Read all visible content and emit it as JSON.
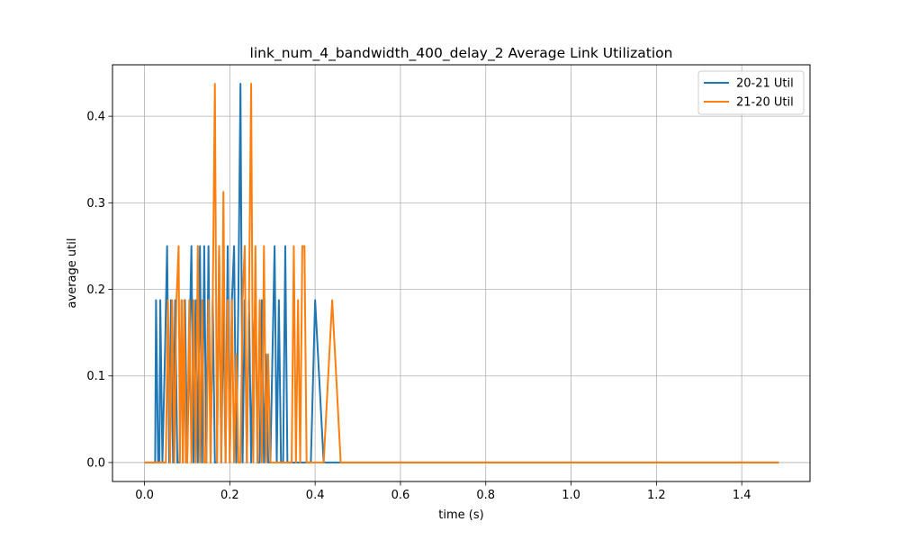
{
  "chart_data": {
    "type": "line",
    "title": "link_num_4_bandwidth_400_delay_2 Average Link Utilization",
    "xlabel": "time (s)",
    "ylabel": "average util",
    "xlim": [
      -0.075,
      1.56
    ],
    "ylim": [
      -0.0219,
      0.4594
    ],
    "xticks": [
      0.0,
      0.2,
      0.4,
      0.6,
      0.8,
      1.0,
      1.2,
      1.4
    ],
    "xtick_labels": [
      "0.0",
      "0.2",
      "0.4",
      "0.6",
      "0.8",
      "1.0",
      "1.2",
      "1.4"
    ],
    "yticks": [
      0.0,
      0.1,
      0.2,
      0.3,
      0.4
    ],
    "ytick_labels": [
      "0.0",
      "0.1",
      "0.2",
      "0.3",
      "0.4"
    ],
    "grid": true,
    "legend_position": "top-right",
    "series": [
      {
        "name": "20-21 Util",
        "color": "#1f77b4",
        "x": [
          0.0,
          0.025,
          0.027,
          0.032,
          0.035,
          0.037,
          0.042,
          0.048,
          0.053,
          0.058,
          0.062,
          0.067,
          0.072,
          0.077,
          0.082,
          0.087,
          0.09,
          0.095,
          0.1,
          0.105,
          0.11,
          0.115,
          0.12,
          0.125,
          0.13,
          0.135,
          0.14,
          0.145,
          0.15,
          0.155,
          0.16,
          0.165,
          0.17,
          0.175,
          0.18,
          0.185,
          0.19,
          0.195,
          0.2,
          0.205,
          0.21,
          0.215,
          0.22,
          0.225,
          0.23,
          0.235,
          0.24,
          0.245,
          0.25,
          0.255,
          0.26,
          0.265,
          0.27,
          0.275,
          0.28,
          0.285,
          0.29,
          0.295,
          0.3,
          0.305,
          0.31,
          0.315,
          0.32,
          0.325,
          0.33,
          0.335,
          0.34,
          0.345,
          0.35,
          0.36,
          0.37,
          0.38,
          0.39,
          0.4,
          0.42,
          0.44,
          0.46,
          0.5,
          0.8,
          1.2,
          1.487
        ],
        "y": [
          0.0,
          0.0,
          0.1875,
          0.0,
          0.0,
          0.1875,
          0.0,
          0.125,
          0.25,
          0.0,
          0.1875,
          0.0,
          0.1875,
          0.0,
          0.0,
          0.1875,
          0.0,
          0.1875,
          0.0,
          0.125,
          0.25,
          0.0,
          0.1875,
          0.0,
          0.25,
          0.0,
          0.25,
          0.0,
          0.25,
          0.0,
          0.1875,
          0.0,
          0.0,
          0.25,
          0.0,
          0.1875,
          0.0,
          0.25,
          0.0,
          0.1875,
          0.25,
          0.0,
          0.1875,
          0.4375,
          0.0,
          0.1875,
          0.0,
          0.1875,
          0.0,
          0.125,
          0.1875,
          0.0,
          0.0,
          0.1875,
          0.0,
          0.125,
          0.0,
          0.0,
          0.125,
          0.25,
          0.0,
          0.1875,
          0.0,
          0.0,
          0.25,
          0.0,
          0.0,
          0.0,
          0.0,
          0.0,
          0.0,
          0.0,
          0.0,
          0.1875,
          0.0,
          0.0,
          0.0,
          0.0,
          0.0,
          0.0,
          0.0
        ]
      },
      {
        "name": "21-20 Util",
        "color": "#ff7f0e",
        "x": [
          0.0,
          0.05,
          0.055,
          0.06,
          0.065,
          0.07,
          0.075,
          0.08,
          0.083,
          0.087,
          0.09,
          0.093,
          0.097,
          0.1,
          0.105,
          0.11,
          0.115,
          0.12,
          0.125,
          0.13,
          0.135,
          0.14,
          0.145,
          0.15,
          0.155,
          0.16,
          0.165,
          0.17,
          0.175,
          0.18,
          0.185,
          0.19,
          0.195,
          0.2,
          0.205,
          0.21,
          0.215,
          0.22,
          0.225,
          0.23,
          0.235,
          0.24,
          0.245,
          0.25,
          0.255,
          0.26,
          0.265,
          0.27,
          0.275,
          0.28,
          0.285,
          0.29,
          0.295,
          0.3,
          0.31,
          0.32,
          0.33,
          0.34,
          0.345,
          0.35,
          0.355,
          0.36,
          0.365,
          0.37,
          0.375,
          0.38,
          0.385,
          0.39,
          0.4,
          0.42,
          0.44,
          0.46,
          0.5,
          0.8,
          1.2,
          1.487
        ],
        "y": [
          0.0,
          0.0,
          0.1875,
          0.0,
          0.1875,
          0.0,
          0.1875,
          0.25,
          0.0,
          0.1875,
          0.0,
          0.1875,
          0.0,
          0.0,
          0.1875,
          0.0,
          0.1875,
          0.0,
          0.25,
          0.0,
          0.1875,
          0.0,
          0.0,
          0.1875,
          0.0,
          0.1875,
          0.4375,
          0.0,
          0.25,
          0.0,
          0.3125,
          0.0,
          0.1875,
          0.0,
          0.1875,
          0.0,
          0.125,
          0.0,
          0.0,
          0.1875,
          0.25,
          0.0,
          0.1875,
          0.4375,
          0.0,
          0.25,
          0.0,
          0.1875,
          0.0,
          0.25,
          0.0,
          0.125,
          0.0,
          0.0,
          0.0,
          0.0,
          0.0,
          0.0,
          0.0,
          0.25,
          0.0,
          0.1875,
          0.0,
          0.25,
          0.25,
          0.0,
          0.0,
          0.0,
          0.0,
          0.0,
          0.1875,
          0.0,
          0.0,
          0.0,
          0.0,
          0.0
        ]
      }
    ]
  }
}
